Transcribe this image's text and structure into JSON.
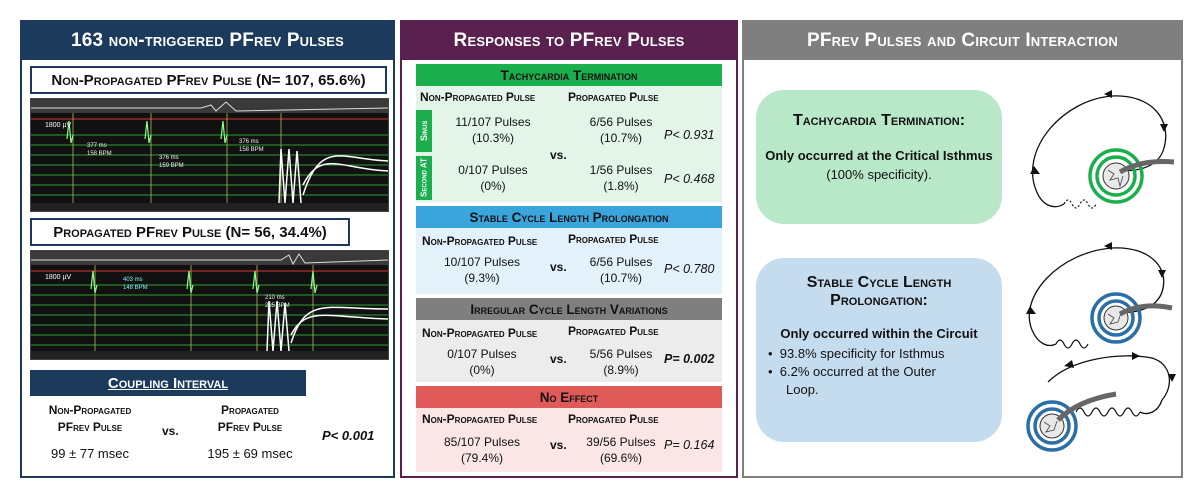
{
  "panel1": {
    "title": "163 non-triggered PFrev  Pulses",
    "nonprop_title": "Non-Propagated PFrev Pulse (N= 107, 65.6%)",
    "prop_title": "Propagated PFrev Pulse (N= 56, 34.4%)",
    "ecg1_labels": {
      "scale": "1800 µV",
      "m1": "377 ms",
      "m2": "158 BPM",
      "m3": "376 ms",
      "m4": "159 BPM",
      "m5": "376 ms",
      "m6": "158 BPM"
    },
    "ecg2_labels": {
      "scale": "1800 µV",
      "m1": "403 ms",
      "m2": "148 BPM",
      "m3": "210 ms",
      "m4": "285 BPM"
    },
    "coupling": {
      "title": "Coupling Interval",
      "col1_l1": "Non-Propagated",
      "col1_l2": "PFrev  Pulse",
      "col2_l1": "Propagated",
      "col2_l2": "PFrev  Pulse",
      "vs": "vs.",
      "val1": "99 ± 77 msec",
      "val2": "195 ± 69 msec",
      "p": "P< 0.001"
    }
  },
  "panel2": {
    "title": "Responses to PFrev Pulses",
    "col_nonprop": "Non-Propagated Pulse",
    "col_prop": "Propagated Pulse",
    "vs": "vs.",
    "sections": [
      {
        "title": "Tachycardia Termination",
        "color": "#1aae4c",
        "bg": "#e3f4e8",
        "side1": "Sinus",
        "side2": "Second AT",
        "r1a": "11/107 Pulses",
        "r1b": "(10.3%)",
        "r1c": "6/56 Pulses",
        "r1d": "(10.7%)",
        "r1p": "P< 0.931",
        "r2a": "0/107 Pulses",
        "r2b": "(0%)",
        "r2c": "1/56 Pulses",
        "r2d": "(1.8%)",
        "r2p": "P< 0.468"
      },
      {
        "title": "Stable Cycle Length Prolongation",
        "color": "#3aa5dc",
        "bg": "#e2f1fa",
        "a": "10/107 Pulses",
        "b": "(9.3%)",
        "c": "6/56 Pulses",
        "d": "(10.7%)",
        "p": "P< 0.780"
      },
      {
        "title": "Irregular Cycle Length Variations",
        "color": "#7f7f7f",
        "bg": "#ececec",
        "a": "0/107 Pulses",
        "b": "(0%)",
        "c": "5/56 Pulses",
        "d": "(8.9%)",
        "p": "P= 0.002"
      },
      {
        "title": "No Effect",
        "color": "#e05a5a",
        "bg": "#fbe6e6",
        "a": "85/107 Pulses",
        "b": "(79.4%)",
        "c": "39/56 Pulses",
        "d": "(69.6%)",
        "p": "P= 0.164"
      }
    ]
  },
  "panel3": {
    "title": "PFrev Pulses and Circuit Interaction",
    "b1_title": "Tachycardia Termination:",
    "b1_line1": "Only occurred at the Critical Isthmus",
    "b1_line2": "(100% specificity).",
    "b2_title1": "Stable Cycle  Length",
    "b2_title2": "Prolongation:",
    "b2_line1": "Only occurred  within the Circuit",
    "b2_bullet1": "93.8% specificity for Isthmus",
    "b2_bullet2a": "6.2% occurred at the Outer",
    "b2_bullet2b": "Loop.",
    "bullet": "•"
  },
  "colors": {
    "navy": "#1b3a5c",
    "plum": "#5a2050",
    "gray": "#7f7f7f",
    "green": "#1aae4c",
    "blue": "#3aa5dc",
    "red": "#e05a5a"
  }
}
